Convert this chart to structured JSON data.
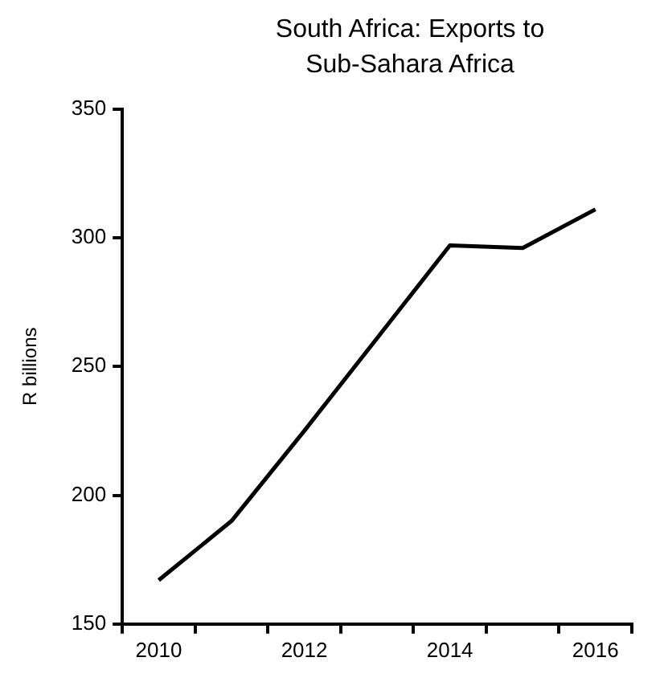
{
  "chart_data": {
    "type": "line",
    "title": "South Africa: Exports to Sub-Sahara Africa",
    "ylabel": "R billions",
    "categories": [
      "2010",
      null,
      "2012",
      null,
      "2014",
      null,
      "2016"
    ],
    "series": [
      {
        "color": "#000000",
        "values": [
          167,
          190,
          225,
          261,
          297,
          296,
          311
        ]
      }
    ],
    "ylim": [
      150,
      350
    ],
    "yticks": [
      150,
      200,
      250,
      300,
      350
    ],
    "grid": false,
    "legend": false,
    "marker": "none",
    "line_style": "solid"
  }
}
